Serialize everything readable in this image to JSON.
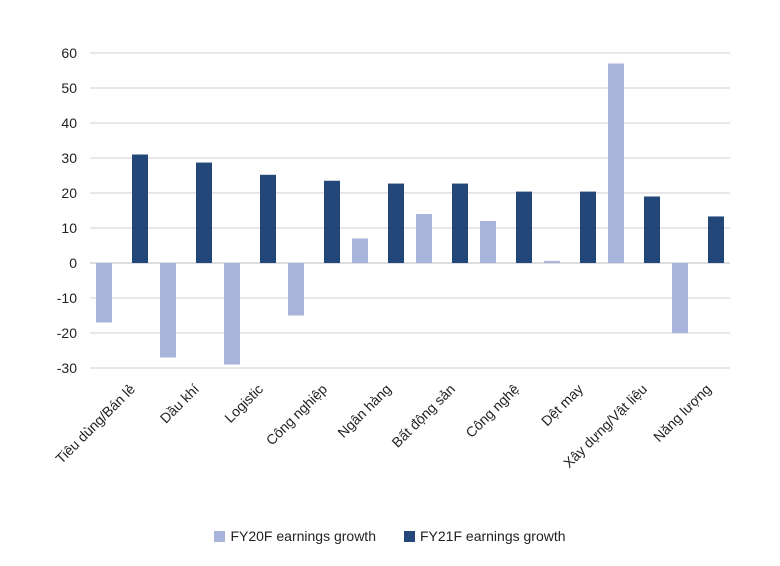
{
  "chart_data": {
    "type": "bar",
    "title": "",
    "xlabel": "",
    "ylabel": "",
    "ylim": [
      -30,
      60
    ],
    "yticks": [
      -30,
      -20,
      -10,
      0,
      10,
      20,
      30,
      40,
      50,
      60
    ],
    "grid": true,
    "legend_position": "bottom-center",
    "categories": [
      "Tiêu dùng/Bán lẻ",
      "Dầu khí",
      "Logistic",
      "Công nghiệp",
      "Ngân hàng",
      "Bất động sản",
      "Công nghệ",
      "Dệt may",
      "Xây dựng/Vật liệu",
      "Năng lượng"
    ],
    "series": [
      {
        "name": "FY20F earnings growth",
        "color": "#a9b4da",
        "values": [
          -17,
          -27,
          -29,
          -15,
          7,
          14,
          12,
          0.6,
          57,
          -20
        ]
      },
      {
        "name": "FY21F earnings growth",
        "color": "#24477a",
        "values": [
          31,
          28.7,
          25.2,
          23.5,
          22.7,
          22.7,
          20.4,
          20.4,
          19,
          13.3
        ]
      }
    ]
  }
}
